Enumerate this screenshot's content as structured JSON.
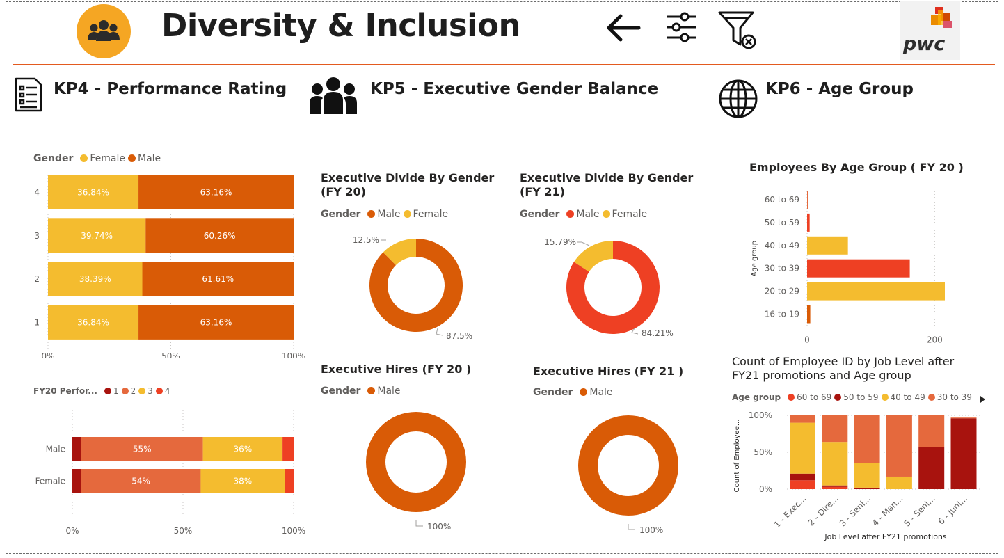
{
  "header": {
    "title": "Diversity & Inclusion",
    "logo_text": "pwc",
    "icons": [
      "people-icon",
      "back-arrow-icon",
      "sliders-icon",
      "clear-filter-icon"
    ]
  },
  "colors": {
    "female": "#f4bc2f",
    "male": "#d95b06",
    "accent": "#f5a623",
    "red": "#ee4023",
    "darkred": "#a8130e",
    "orange": "#e5693d"
  },
  "sections": {
    "kp4": "KP4 - Performance Rating",
    "kp5": "KP5 - Executive Gender Balance",
    "kp6": "KP6  - Age Group"
  },
  "legends": {
    "perf_gender": {
      "title": "Gender",
      "items": [
        "Female",
        "Male"
      ]
    },
    "fy20_perf": {
      "title": "FY20 Perfor...",
      "items": [
        "1",
        "2",
        "3",
        "4"
      ]
    },
    "exec20_gender": {
      "title": "Gender",
      "items": [
        "Male",
        "Female"
      ]
    },
    "exec21_gender": {
      "title": "Gender",
      "items": [
        "Male",
        "Female"
      ]
    },
    "hires20_gender": {
      "title": "Gender",
      "items": [
        "Male"
      ]
    },
    "hires21_gender": {
      "title": "Gender",
      "items": [
        "Male"
      ]
    },
    "joblevel_age": {
      "title": "Age group",
      "items": [
        "60 to 69",
        "50 to 59",
        "40 to 49",
        "30 to 39"
      ]
    }
  },
  "chart_data": [
    {
      "id": "perf_rating_gender",
      "type": "bar",
      "stacked": "100%",
      "orientation": "horizontal",
      "categories": [
        "4",
        "3",
        "2",
        "1"
      ],
      "series": [
        {
          "name": "Female",
          "values": [
            36.84,
            39.74,
            38.39,
            36.84
          ],
          "labels": [
            "36.84%",
            "39.74%",
            "38.39%",
            "36.84%"
          ]
        },
        {
          "name": "Male",
          "values": [
            63.16,
            60.26,
            61.61,
            63.16
          ],
          "labels": [
            "63.16%",
            "60.26%",
            "61.61%",
            "63.16%"
          ]
        }
      ],
      "x_ticks": [
        "0%",
        "50%",
        "100%"
      ]
    },
    {
      "id": "fy20_perf_by_gender",
      "type": "bar",
      "stacked": "100%",
      "orientation": "horizontal",
      "categories": [
        "Male",
        "Female"
      ],
      "series": [
        {
          "name": "1",
          "values": [
            4,
            4
          ],
          "labels": [
            "",
            ""
          ]
        },
        {
          "name": "2",
          "values": [
            55,
            54
          ],
          "labels": [
            "55%",
            "54%"
          ]
        },
        {
          "name": "3",
          "values": [
            36,
            38
          ],
          "labels": [
            "36%",
            "38%"
          ]
        },
        {
          "name": "4",
          "values": [
            5,
            4
          ],
          "labels": [
            "",
            ""
          ]
        }
      ],
      "x_ticks": [
        "0%",
        "50%",
        "100%"
      ]
    },
    {
      "id": "exec_divide_fy20",
      "type": "pie",
      "donut": true,
      "title": "Executive Divide By Gender (FY 20)",
      "slices": [
        {
          "name": "Male",
          "value": 87.5,
          "label": "87.5%"
        },
        {
          "name": "Female",
          "value": 12.5,
          "label": "12.5%"
        }
      ]
    },
    {
      "id": "exec_divide_fy21",
      "type": "pie",
      "donut": true,
      "title": "Executive Divide By Gender (FY 21)",
      "slices": [
        {
          "name": "Male",
          "value": 84.21,
          "label": "84.21%"
        },
        {
          "name": "Female",
          "value": 15.79,
          "label": "15.79%"
        }
      ]
    },
    {
      "id": "exec_hires_fy20",
      "type": "pie",
      "donut": true,
      "title": "Executive Hires (FY 20 )",
      "slices": [
        {
          "name": "Male",
          "value": 100,
          "label": "100%"
        }
      ]
    },
    {
      "id": "exec_hires_fy21",
      "type": "pie",
      "donut": true,
      "title": "Executive Hires (FY 21 )",
      "slices": [
        {
          "name": "Male",
          "value": 100,
          "label": "100%"
        }
      ]
    },
    {
      "id": "employees_by_age_fy20",
      "type": "bar",
      "orientation": "horizontal",
      "title": "Employees By Age Group ( FY 20 )",
      "ylabel": "Age group",
      "categories": [
        "60 to 69",
        "50 to 59",
        "40 to 49",
        "30 to 39",
        "20 to 29",
        "16 to 19"
      ],
      "values": [
        2,
        4,
        64,
        161,
        216,
        5
      ],
      "x_ticks": [
        "0",
        "200"
      ],
      "xlim": [
        0,
        240
      ]
    },
    {
      "id": "job_level_by_age",
      "type": "bar",
      "stacked": "100%",
      "title": "Count of Employee ID by Job Level after FY21 promotions and Age group",
      "xlabel": "Job Level after FY21 promotions",
      "ylabel": "Count of Employee...",
      "categories": [
        "1 - Exec...",
        "2 - Dire...",
        "3 - Seni...",
        "4 - Man...",
        "5 - Seni...",
        "6 - Juni..."
      ],
      "series": [
        {
          "name": "60 to 69",
          "values": [
            12,
            3,
            0,
            0,
            0,
            0
          ]
        },
        {
          "name": "50 to 59",
          "values": [
            9,
            2,
            2,
            0,
            57,
            96
          ]
        },
        {
          "name": "40 to 49",
          "values": [
            69,
            59,
            33,
            17,
            0,
            0
          ]
        },
        {
          "name": "30 to 39",
          "values": [
            10,
            36,
            65,
            83,
            43,
            1
          ]
        }
      ],
      "y_ticks": [
        "0%",
        "50%",
        "100%"
      ]
    }
  ]
}
